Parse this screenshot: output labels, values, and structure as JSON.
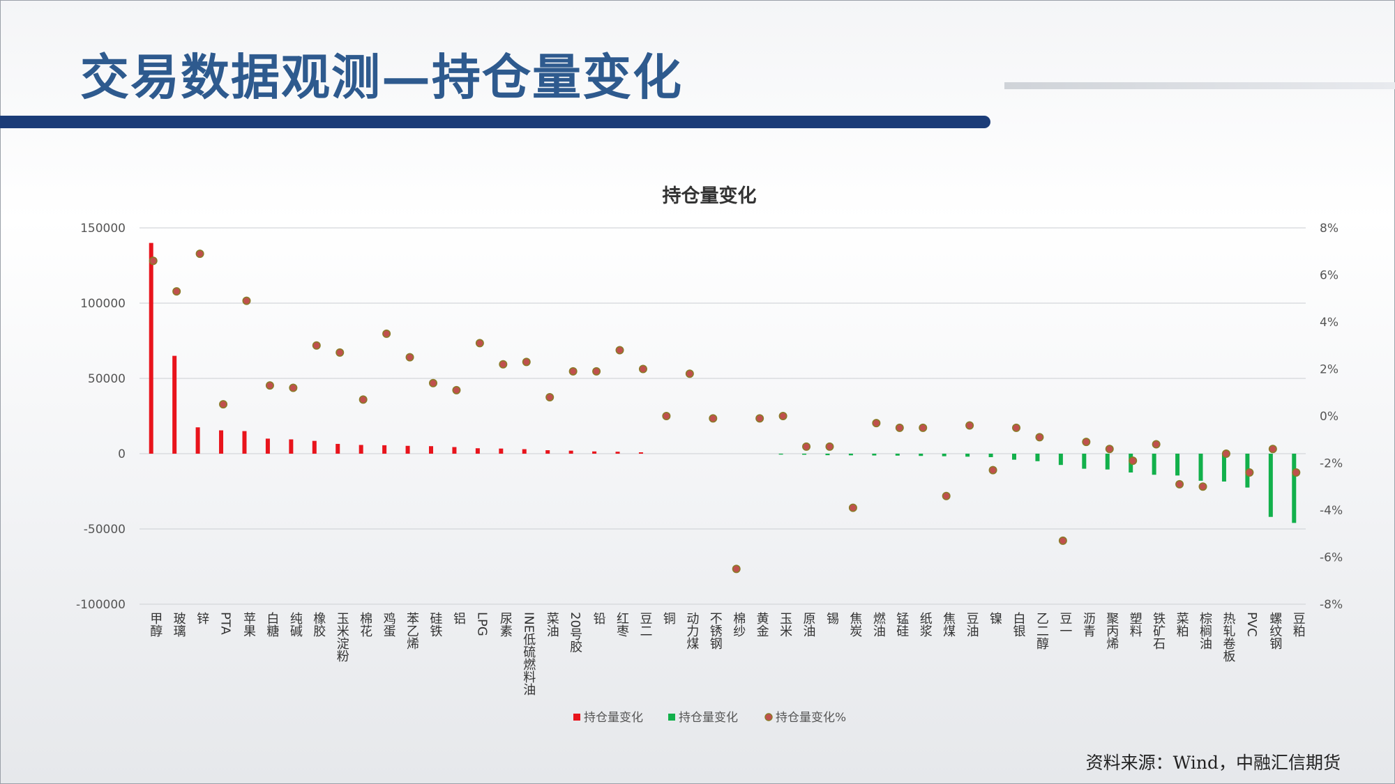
{
  "slide": {
    "title": "交易数据观测—持仓量变化",
    "source": "资料来源：Wind，中融汇信期货"
  },
  "colors": {
    "title": "#2e5a8e",
    "bar_positive": "#e8141c",
    "bar_negative": "#12b04b",
    "marker_fill": "#c0504d",
    "marker_stroke": "#8a7a28",
    "title_bar": "#1b3c78"
  },
  "chart_data": {
    "type": "bar",
    "title": "持仓量变化",
    "categories": [
      "甲醇",
      "玻璃",
      "锌",
      "PTA",
      "苹果",
      "白糖",
      "纯碱",
      "橡胶",
      "玉米淀粉",
      "棉花",
      "鸡蛋",
      "苯乙烯",
      "硅铁",
      "铝",
      "LPG",
      "尿素",
      "INE低硫燃料油",
      "菜油",
      "20号胶",
      "铅",
      "红枣",
      "豆二",
      "铜",
      "动力煤",
      "不锈钢",
      "棉纱",
      "黄金",
      "玉米",
      "原油",
      "锡",
      "焦炭",
      "燃油",
      "锰硅",
      "纸浆",
      "焦煤",
      "豆油",
      "镍",
      "白银",
      "乙二醇",
      "豆一",
      "沥青",
      "聚丙烯",
      "塑料",
      "铁矿石",
      "菜粕",
      "棕榈油",
      "热轧卷板",
      "PVC",
      "螺纹钢",
      "豆粕"
    ],
    "series": [
      {
        "name": "持仓量变化",
        "axis": "left",
        "color": "#e8141c",
        "values": [
          140000,
          65000,
          17500,
          15500,
          15000,
          10000,
          9500,
          8500,
          6500,
          5800,
          5600,
          5200,
          5000,
          4400,
          3600,
          3400,
          3000,
          2300,
          2000,
          1500,
          1300,
          900,
          0,
          0,
          0,
          0,
          0,
          0,
          0,
          0,
          0,
          0,
          0,
          0,
          0,
          0,
          0,
          0,
          0,
          0,
          0,
          0,
          0,
          0,
          0,
          0,
          0,
          0,
          0,
          0
        ]
      },
      {
        "name": "持仓量变化",
        "axis": "left",
        "color": "#12b04b",
        "values": [
          0,
          0,
          0,
          0,
          0,
          0,
          0,
          0,
          0,
          0,
          0,
          0,
          0,
          0,
          0,
          0,
          0,
          0,
          0,
          0,
          0,
          0,
          0,
          0,
          0,
          0,
          0,
          -600,
          -700,
          -1000,
          -1100,
          -1200,
          -1300,
          -1500,
          -1700,
          -2000,
          -2300,
          -4000,
          -5000,
          -7500,
          -10000,
          -10500,
          -12500,
          -14000,
          -14500,
          -18000,
          -18500,
          -22500,
          -42000,
          -46000
        ]
      },
      {
        "name": "持仓量变化%",
        "axis": "right",
        "type": "scatter",
        "values": [
          6.6,
          5.3,
          6.9,
          0.5,
          4.9,
          1.3,
          1.2,
          3.0,
          2.7,
          0.7,
          3.5,
          2.5,
          1.4,
          1.1,
          3.1,
          2.2,
          2.3,
          0.8,
          1.9,
          1.9,
          2.8,
          2.0,
          0.0,
          1.8,
          -0.1,
          -6.5,
          -0.1,
          0.0,
          -1.3,
          -1.3,
          -3.9,
          -0.3,
          -0.5,
          -0.5,
          -3.4,
          -0.4,
          -2.3,
          -0.5,
          -0.9,
          -5.3,
          -1.1,
          -1.4,
          -1.9,
          -1.2,
          -2.9,
          -3.0,
          -1.6,
          -2.4,
          -1.4,
          -2.4
        ]
      }
    ],
    "y_left": {
      "min": -100000,
      "max": 150000,
      "ticks": [
        150000,
        100000,
        50000,
        0,
        -50000,
        -100000
      ]
    },
    "y_right": {
      "min": -8,
      "max": 8,
      "ticks": [
        "8%",
        "6%",
        "4%",
        "2%",
        "0%",
        "-2%",
        "-4%",
        "-6%",
        "-8%"
      ]
    },
    "legend": {
      "position": "bottom",
      "items": [
        "持仓量变化",
        "持仓量变化",
        "持仓量变化%"
      ]
    },
    "grid": true
  }
}
